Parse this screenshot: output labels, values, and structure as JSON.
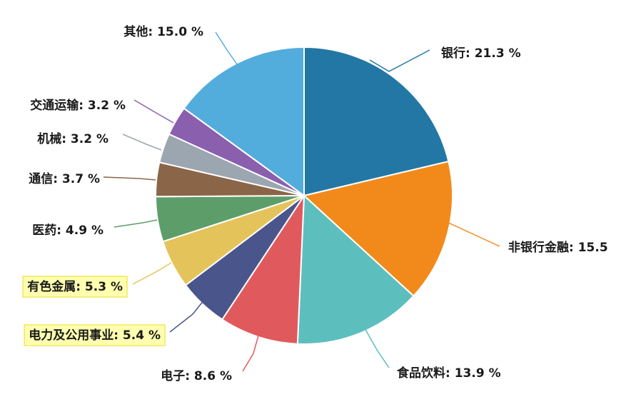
{
  "chart_data": {
    "type": "pie",
    "title": "",
    "unit": "%",
    "slices": [
      {
        "name": "银行",
        "value": 21.3,
        "label": "银行: 21.3 %",
        "color": "#2377a4"
      },
      {
        "name": "非银行金融",
        "value": 15.5,
        "label": "非银行金融: 15.5",
        "color": "#f28a1b"
      },
      {
        "name": "食品饮料",
        "value": 13.9,
        "label": "食品饮料: 13.9 %",
        "color": "#5cbfbe"
      },
      {
        "name": "电子",
        "value": 8.6,
        "label": "电子: 8.6 %",
        "color": "#e05a5d"
      },
      {
        "name": "电力及公用事业",
        "value": 5.4,
        "label": "电力及公用事业: 5.4 %",
        "color": "#4a558c",
        "highlighted": true
      },
      {
        "name": "有色金属",
        "value": 5.3,
        "label": "有色金属: 5.3 %",
        "color": "#e4c45a",
        "highlighted": true
      },
      {
        "name": "医药",
        "value": 4.9,
        "label": "医药: 4.9 %",
        "color": "#5d9d6a"
      },
      {
        "name": "通信",
        "value": 3.7,
        "label": "通信: 3.7 %",
        "color": "#8b6547"
      },
      {
        "name": "机械",
        "value": 3.2,
        "label": "机械: 3.2 %",
        "color": "#9ba6b0"
      },
      {
        "name": "交通运输",
        "value": 3.2,
        "label": "交通运输: 3.2 %",
        "color": "#8a5fae"
      },
      {
        "name": "其他",
        "value": 15.0,
        "label": "其他: 15.0 %",
        "color": "#52addc"
      }
    ],
    "legend": "none",
    "start_angle": "12 o'clock, clockwise"
  }
}
